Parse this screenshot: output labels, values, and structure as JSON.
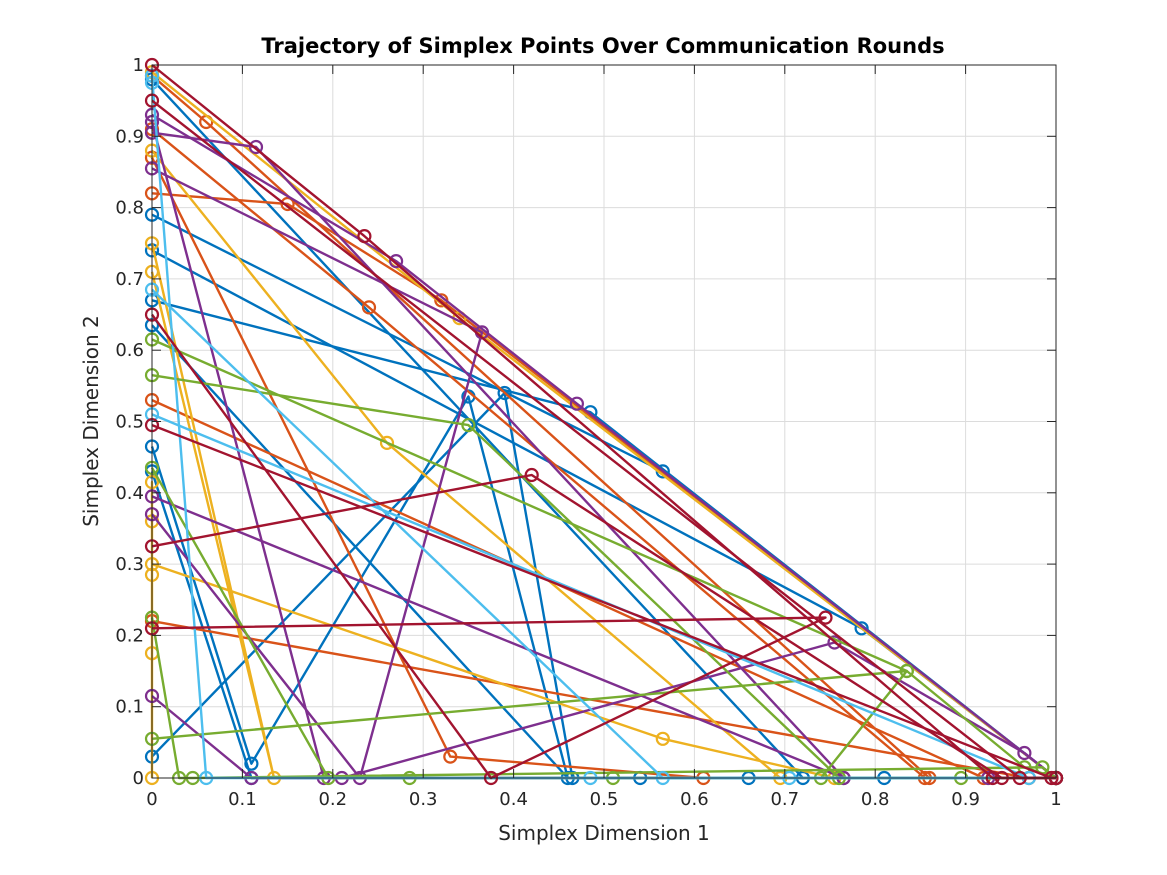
{
  "chart_data": {
    "type": "line",
    "title": "Trajectory of Simplex Points Over Communication Rounds",
    "xlabel": "Simplex Dimension 1",
    "ylabel": "Simplex Dimension 2",
    "xlim": [
      0,
      1
    ],
    "ylim": [
      0,
      1
    ],
    "xticks": [
      "0",
      "0.1",
      "0.2",
      "0.3",
      "0.4",
      "0.5",
      "0.6",
      "0.7",
      "0.8",
      "0.9",
      "1"
    ],
    "yticks": [
      "0",
      "0.1",
      "0.2",
      "0.3",
      "0.4",
      "0.5",
      "0.6",
      "0.7",
      "0.8",
      "0.9",
      "1"
    ],
    "grid": true,
    "legend": "none",
    "colors": [
      "#0072BD",
      "#D95319",
      "#EDB120",
      "#7E2F8E",
      "#77AC30",
      "#4DBEEE",
      "#A2142F"
    ],
    "series": [
      {
        "color_index": 0,
        "points": [
          [
            0,
            0.79
          ],
          [
            0.565,
            0.43
          ],
          [
            1,
            0
          ]
        ]
      },
      {
        "color_index": 0,
        "points": [
          [
            0,
            0.74
          ],
          [
            0.785,
            0.21
          ],
          [
            1,
            0
          ]
        ]
      },
      {
        "color_index": 0,
        "points": [
          [
            0,
            0.67
          ],
          [
            0.485,
            0.513
          ],
          [
            1,
            0
          ]
        ]
      },
      {
        "color_index": 0,
        "points": [
          [
            0,
            0.635
          ],
          [
            0.46,
            0
          ],
          [
            0.35,
            0.535
          ],
          [
            0.11,
            0.02
          ],
          [
            0,
            0.465
          ]
        ]
      },
      {
        "color_index": 0,
        "points": [
          [
            0,
            0.43
          ],
          [
            0.11,
            0.0
          ],
          [
            0.66,
            0
          ],
          [
            1,
            0
          ]
        ]
      },
      {
        "color_index": 0,
        "points": [
          [
            0,
            0.98
          ],
          [
            0.72,
            0
          ],
          [
            0.81,
            0.0
          ],
          [
            1,
            0
          ]
        ]
      },
      {
        "color_index": 0,
        "points": [
          [
            0,
            0.03
          ],
          [
            0.39,
            0.54
          ],
          [
            0.465,
            0
          ],
          [
            0.54,
            0
          ],
          [
            1,
            0
          ]
        ]
      },
      {
        "color_index": 1,
        "points": [
          [
            0,
            0.53
          ],
          [
            0.92,
            0
          ],
          [
            1,
            0
          ]
        ]
      },
      {
        "color_index": 1,
        "points": [
          [
            0,
            0.22
          ],
          [
            0.97,
            0.0
          ],
          [
            1,
            0
          ]
        ]
      },
      {
        "color_index": 1,
        "points": [
          [
            0,
            0.87
          ],
          [
            0.33,
            0.03
          ],
          [
            0.61,
            0
          ],
          [
            1,
            0
          ]
        ]
      },
      {
        "color_index": 1,
        "points": [
          [
            0,
            0.985
          ],
          [
            0.06,
            0.92
          ],
          [
            0.86,
            0
          ],
          [
            1,
            0
          ]
        ]
      },
      {
        "color_index": 1,
        "points": [
          [
            0,
            0.91
          ],
          [
            0.24,
            0.66
          ],
          [
            0.855,
            0
          ],
          [
            1,
            0
          ]
        ]
      },
      {
        "color_index": 1,
        "points": [
          [
            0,
            0.82
          ],
          [
            0.15,
            0.805
          ],
          [
            0.32,
            0.67
          ],
          [
            1,
            0
          ]
        ]
      },
      {
        "color_index": 2,
        "points": [
          [
            0,
            0.75
          ],
          [
            0.135,
            0
          ],
          [
            0,
            0.71
          ]
        ]
      },
      {
        "color_index": 2,
        "points": [
          [
            0,
            0.3
          ],
          [
            0.565,
            0.055
          ],
          [
            0.755,
            0
          ],
          [
            1,
            0
          ]
        ]
      },
      {
        "color_index": 2,
        "points": [
          [
            0,
            0.36
          ],
          [
            0,
            0.415
          ],
          [
            0,
            0.175
          ],
          [
            0,
            0.285
          ],
          [
            0,
            0.0
          ]
        ]
      },
      {
        "color_index": 2,
        "points": [
          [
            0,
            0.88
          ],
          [
            0.26,
            0.47
          ],
          [
            0.695,
            0
          ],
          [
            1,
            0
          ]
        ]
      },
      {
        "color_index": 2,
        "points": [
          [
            0,
            0.99
          ],
          [
            0.34,
            0.645
          ],
          [
            1,
            0
          ]
        ]
      },
      {
        "color_index": 3,
        "points": [
          [
            0,
            0.115
          ],
          [
            0.11,
            0.0
          ],
          [
            0.21,
            0.0
          ],
          [
            0.755,
            0.19
          ],
          [
            0.965,
            0.035
          ],
          [
            1,
            0
          ]
        ]
      },
      {
        "color_index": 3,
        "points": [
          [
            0,
            0.395
          ],
          [
            0.765,
            0
          ],
          [
            1,
            0
          ]
        ]
      },
      {
        "color_index": 3,
        "points": [
          [
            0,
            0.905
          ],
          [
            0.115,
            0.885
          ],
          [
            0.765,
            0
          ],
          [
            1,
            0
          ]
        ]
      },
      {
        "color_index": 3,
        "points": [
          [
            0,
            0.93
          ],
          [
            0.27,
            0.725
          ],
          [
            0.47,
            0.525
          ],
          [
            1,
            0
          ]
        ]
      },
      {
        "color_index": 3,
        "points": [
          [
            0,
            0.855
          ],
          [
            0.365,
            0.625
          ],
          [
            0.23,
            0.0
          ],
          [
            0,
            0.37
          ]
        ]
      },
      {
        "color_index": 3,
        "points": [
          [
            0,
            0.92
          ],
          [
            0.19,
            0.0
          ],
          [
            0.925,
            0
          ],
          [
            1,
            0
          ]
        ]
      },
      {
        "color_index": 4,
        "points": [
          [
            0,
            0.615
          ],
          [
            0.835,
            0.15
          ],
          [
            0.74,
            0
          ],
          [
            1,
            0
          ]
        ]
      },
      {
        "color_index": 4,
        "points": [
          [
            0,
            0.055
          ],
          [
            0.835,
            0.15
          ],
          [
            0.965,
            0.015
          ],
          [
            1,
            0
          ]
        ]
      },
      {
        "color_index": 4,
        "points": [
          [
            0,
            0.565
          ],
          [
            0.35,
            0.495
          ],
          [
            0.76,
            0
          ],
          [
            1,
            0
          ]
        ]
      },
      {
        "color_index": 4,
        "points": [
          [
            0,
            0.435
          ],
          [
            0.195,
            0
          ],
          [
            0.285,
            0
          ],
          [
            0.51,
            0.0
          ],
          [
            0.895,
            0
          ],
          [
            1,
            0
          ]
        ]
      },
      {
        "color_index": 4,
        "points": [
          [
            0,
            0.225
          ],
          [
            0.03,
            0
          ],
          [
            0.045,
            0
          ],
          [
            0.985,
            0.015
          ],
          [
            1,
            0
          ]
        ]
      },
      {
        "color_index": 5,
        "points": [
          [
            0,
            0.51
          ],
          [
            0.97,
            0
          ],
          [
            1,
            0
          ]
        ]
      },
      {
        "color_index": 5,
        "points": [
          [
            0,
            0.685
          ],
          [
            0.565,
            0
          ],
          [
            0.705,
            0
          ],
          [
            1,
            0
          ]
        ]
      },
      {
        "color_index": 5,
        "points": [
          [
            0,
            0.975
          ],
          [
            0,
            0.985
          ],
          [
            0.06,
            0
          ],
          [
            0.485,
            0.0
          ],
          [
            1,
            0
          ]
        ]
      },
      {
        "color_index": 6,
        "points": [
          [
            0,
            0.495
          ],
          [
            0.995,
            0.0
          ],
          [
            1,
            0
          ]
        ]
      },
      {
        "color_index": 6,
        "points": [
          [
            0,
            0.21
          ],
          [
            0.745,
            0.225
          ],
          [
            0.375,
            0
          ],
          [
            0,
            0.65
          ]
        ]
      },
      {
        "color_index": 6,
        "points": [
          [
            0,
            1.0
          ],
          [
            0.235,
            0.76
          ],
          [
            0.93,
            0
          ],
          [
            1,
            0
          ]
        ]
      },
      {
        "color_index": 6,
        "points": [
          [
            0,
            0.325
          ],
          [
            0.42,
            0.425
          ],
          [
            0.94,
            0
          ],
          [
            1,
            0
          ]
        ]
      },
      {
        "color_index": 6,
        "points": [
          [
            0,
            0.95
          ],
          [
            0.96,
            0.0
          ],
          [
            1,
            0
          ]
        ]
      }
    ]
  }
}
